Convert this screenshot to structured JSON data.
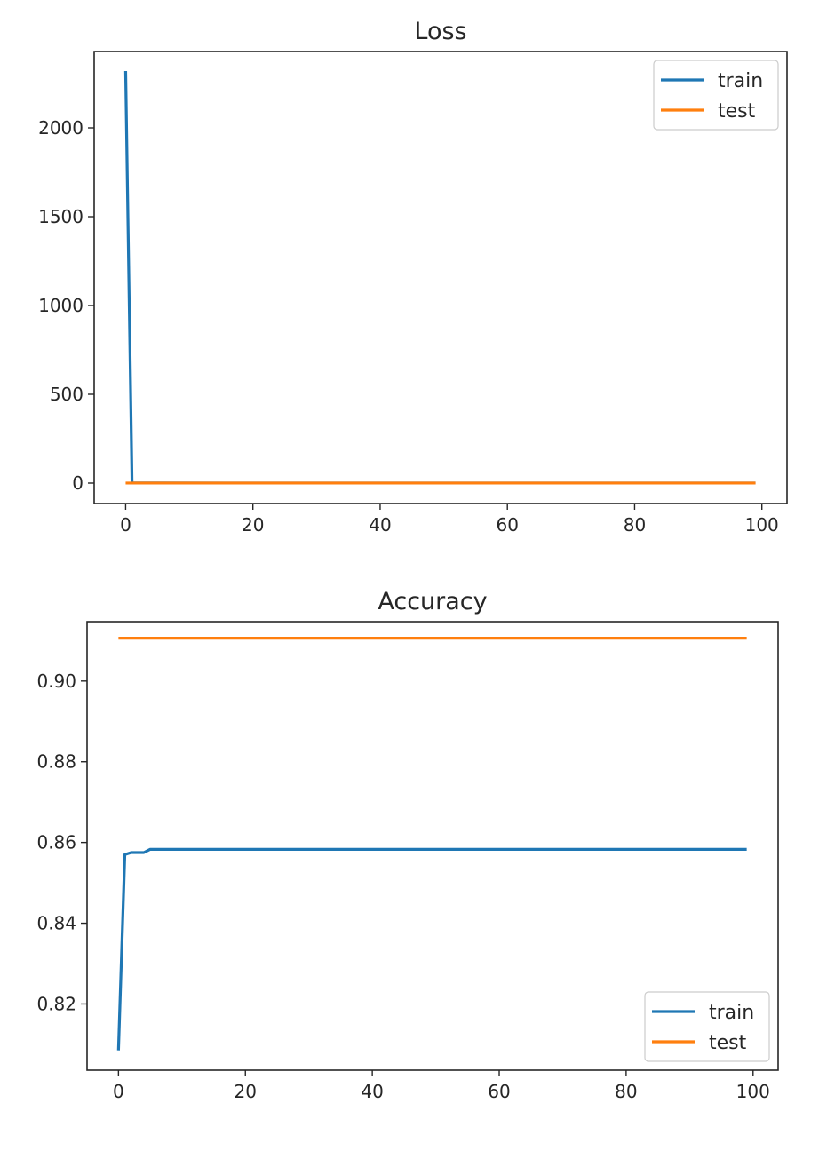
{
  "colors": {
    "train": "#1f77b4",
    "test": "#ff7f0e"
  },
  "chart_data": [
    {
      "type": "line",
      "title": "Loss",
      "xlabel": "",
      "ylabel": "",
      "xlim": [
        -4.95,
        103.95
      ],
      "ylim": [
        -115,
        2430
      ],
      "xticks": [
        0,
        20,
        40,
        60,
        80,
        100
      ],
      "yticks": [
        0,
        500,
        1000,
        1500,
        2000
      ],
      "legend": {
        "placement": "top-right"
      },
      "grid": false,
      "series": [
        {
          "name": "train",
          "x": [
            0,
            1,
            5,
            20,
            40,
            60,
            80,
            99
          ],
          "y": [
            2320,
            1,
            0.5,
            0.4,
            0.4,
            0.4,
            0.4,
            0.4
          ]
        },
        {
          "name": "test",
          "x": [
            0,
            99
          ],
          "y": [
            0.3,
            0.3
          ]
        }
      ]
    },
    {
      "type": "line",
      "title": "Accuracy",
      "xlabel": "",
      "ylabel": "",
      "xlim": [
        -4.95,
        103.95
      ],
      "ylim": [
        0.8036,
        0.9147
      ],
      "xticks": [
        0,
        20,
        40,
        60,
        80,
        100
      ],
      "yticks": [
        0.82,
        0.84,
        0.86,
        0.88,
        0.9
      ],
      "ytick_labels": [
        "0.82",
        "0.84",
        "0.86",
        "0.88",
        "0.90"
      ],
      "legend": {
        "placement": "bottom-right"
      },
      "grid": false,
      "series": [
        {
          "name": "train",
          "x": [
            0,
            1,
            2,
            3,
            4,
            5,
            10,
            30,
            50,
            70,
            99
          ],
          "y": [
            0.8085,
            0.857,
            0.8575,
            0.8575,
            0.8575,
            0.8583,
            0.8583,
            0.8583,
            0.8583,
            0.8583,
            0.8583
          ]
        },
        {
          "name": "test",
          "x": [
            0,
            99
          ],
          "y": [
            0.9106,
            0.9106
          ]
        }
      ]
    }
  ]
}
